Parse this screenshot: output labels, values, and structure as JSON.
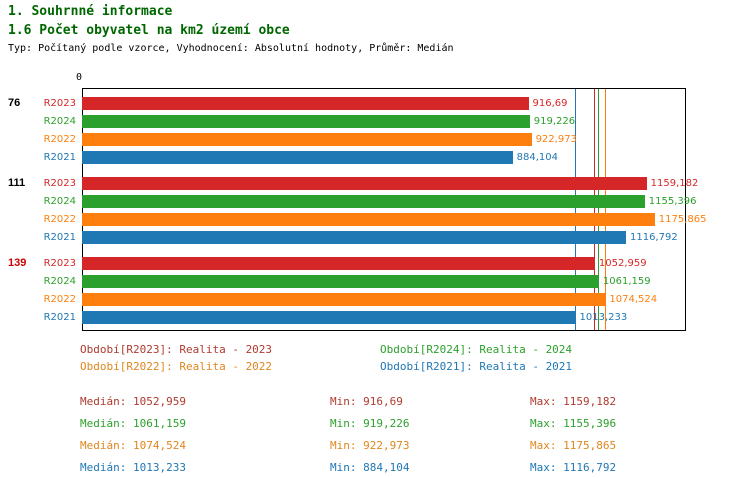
{
  "colors": {
    "title": "#006600",
    "meta": "#000000",
    "frame": "#000000"
  },
  "header": {
    "title": "1. Souhrnné informace",
    "subtitle": "1.6 Počet obyvatel na km2 území obce",
    "meta": "Typ: Počítaný podle vzorce, Vyhodnocení: Absolutní hodnoty, Průměr: Medián"
  },
  "chart_data": {
    "type": "bar",
    "orientation": "horizontal",
    "title": "1.6 Počet obyvatel na km2 území obce",
    "axis_origin_label": "0",
    "xlim": [
      0,
      1240
    ],
    "grid": false,
    "series": {
      "R2023": {
        "name": "R2023",
        "color": "#d62728",
        "text_color": "#b03a2e"
      },
      "R2024": {
        "name": "R2024",
        "color": "#2ca02c",
        "text_color": "#2ca02c"
      },
      "R2022": {
        "name": "R2022",
        "color": "#ff7f0e",
        "text_color": "#e0871f"
      },
      "R2021": {
        "name": "R2021",
        "color": "#1f77b4",
        "text_color": "#1f77b4"
      }
    },
    "groups": [
      {
        "label": "76",
        "label_color": "#000000",
        "bars": [
          {
            "series": "R2023",
            "value": 916.69,
            "value_label": "916,69"
          },
          {
            "series": "R2024",
            "value": 919.226,
            "value_label": "919,226"
          },
          {
            "series": "R2022",
            "value": 922.973,
            "value_label": "922,973"
          },
          {
            "series": "R2021",
            "value": 884.104,
            "value_label": "884,104"
          }
        ]
      },
      {
        "label": "111",
        "label_color": "#000000",
        "bars": [
          {
            "series": "R2023",
            "value": 1159.182,
            "value_label": "1159,182"
          },
          {
            "series": "R2024",
            "value": 1155.396,
            "value_label": "1155,396"
          },
          {
            "series": "R2022",
            "value": 1175.865,
            "value_label": "1175,865"
          },
          {
            "series": "R2021",
            "value": 1116.792,
            "value_label": "1116,792"
          }
        ]
      },
      {
        "label": "139",
        "label_color": "#cc0000",
        "bars": [
          {
            "series": "R2023",
            "value": 1052.959,
            "value_label": "1052,959"
          },
          {
            "series": "R2024",
            "value": 1061.159,
            "value_label": "1061,159"
          },
          {
            "series": "R2022",
            "value": 1074.524,
            "value_label": "1074,524"
          },
          {
            "series": "R2021",
            "value": 1013.233,
            "value_label": "1013,233"
          }
        ]
      }
    ],
    "median_lines": [
      {
        "series": "R2023",
        "value": 1052.959
      },
      {
        "series": "R2024",
        "value": 1061.159
      },
      {
        "series": "R2022",
        "value": 1074.524
      },
      {
        "series": "R2021",
        "value": 1013.233
      }
    ]
  },
  "legend": [
    {
      "series": "R2023",
      "label": "Období[R2023]: Realita - 2023",
      "color": "#b03a2e"
    },
    {
      "series": "R2024",
      "label": "Období[R2024]: Realita - 2024",
      "color": "#2ca02c"
    },
    {
      "series": "R2022",
      "label": "Období[R2022]: Realita - 2022",
      "color": "#e0871f"
    },
    {
      "series": "R2021",
      "label": "Období[R2021]: Realita - 2021",
      "color": "#1f77b4"
    }
  ],
  "stats": [
    {
      "series": "R2023",
      "color": "#b03a2e",
      "median": "Medián: 1052,959",
      "min": "Min: 916,69",
      "max": "Max: 1159,182"
    },
    {
      "series": "R2024",
      "color": "#2ca02c",
      "median": "Medián: 1061,159",
      "min": "Min: 919,226",
      "max": "Max: 1155,396"
    },
    {
      "series": "R2022",
      "color": "#e0871f",
      "median": "Medián: 1074,524",
      "min": "Min: 922,973",
      "max": "Max: 1175,865"
    },
    {
      "series": "R2021",
      "color": "#1f77b4",
      "median": "Medián: 1013,233",
      "min": "Min: 884,104",
      "max": "Max: 1116,792"
    }
  ]
}
